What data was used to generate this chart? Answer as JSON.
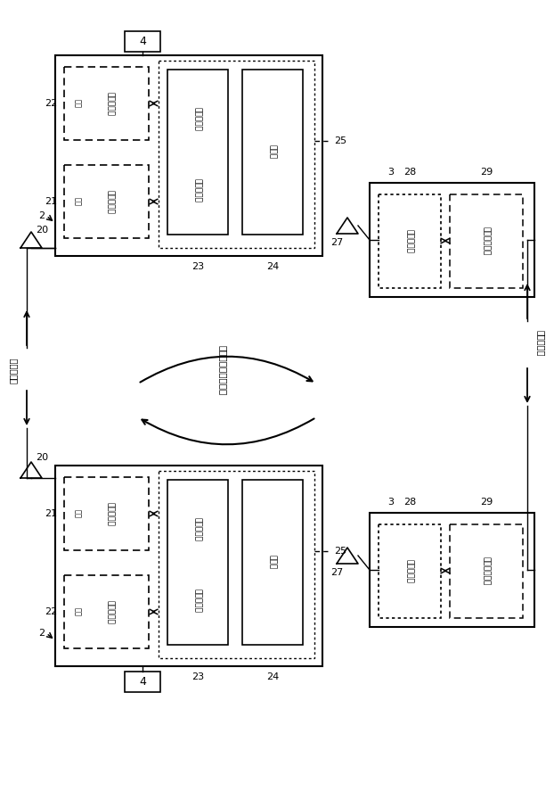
{
  "bg": "#ffffff",
  "fw": 6.22,
  "fh": 9.06,
  "dpi": 100,
  "labels": {
    "4": "4",
    "2": "2",
    "20": "20",
    "21": "21",
    "22": "22",
    "23": "23",
    "24": "24",
    "25": "25",
    "27": "27",
    "28": "28",
    "29": "29",
    "3": "3",
    "road_left": "路路間通信",
    "road_center": "（路路）路路間通信",
    "car_right": "車車間通信",
    "comm_ctrl": "通信制御部",
    "timer": "計時部",
    "comm_proc": "通信処理部",
    "wireless": "無線通信部",
    "proc_device": "通信処理装置",
    "kyukyu": "緊急",
    "ippan": "一般"
  }
}
